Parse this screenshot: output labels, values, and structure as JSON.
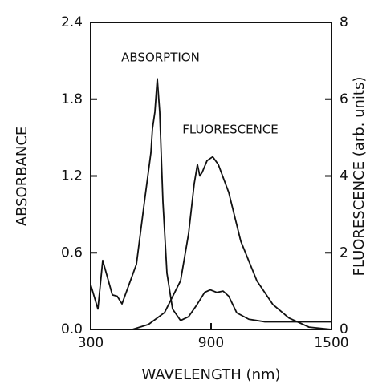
{
  "chart_data": {
    "type": "line",
    "annotations": [
      "ABSORPTION",
      "FLUORESCENCE"
    ],
    "xlabel": "WAVELENGTH (nm)",
    "ylabel": "ABSORBANCE",
    "y2label": "FLUORESCENCE (arb. units)",
    "xlim": [
      300,
      1500
    ],
    "xticks": [
      300,
      900,
      1500
    ],
    "ylim": [
      0,
      2.4
    ],
    "yticks": [
      {
        "value": 0,
        "label": "0.0"
      },
      0.6,
      1.2,
      1.8,
      2.4
    ],
    "y2lim": [
      0,
      8
    ],
    "y2ticks": [
      0,
      2,
      4,
      6,
      8
    ],
    "series": [
      {
        "name": "ABSORPTION",
        "color": "#111111",
        "x": [
          300,
          336,
          360,
          408,
          432,
          456,
          528,
          568,
          600,
          608,
          620,
          632,
          644,
          660,
          680,
          708,
          748,
          788,
          828,
          868,
          896,
          928,
          960,
          988,
          1028,
          1088,
          1168,
          1500
        ],
        "values": [
          0.35,
          0.16,
          0.54,
          0.27,
          0.26,
          0.2,
          0.51,
          1.0,
          1.38,
          1.57,
          1.7,
          1.96,
          1.7,
          1.0,
          0.44,
          0.16,
          0.07,
          0.1,
          0.19,
          0.29,
          0.31,
          0.29,
          0.3,
          0.26,
          0.13,
          0.08,
          0.06,
          0.06
        ]
      },
      {
        "name": "FLUORESCENCE",
        "color": "#111111",
        "axis": "y2",
        "x": [
          508,
          588,
          668,
          748,
          788,
          816,
          832,
          844,
          856,
          880,
          908,
          936,
          988,
          1048,
          1128,
          1208,
          1288,
          1388,
          1500
        ],
        "values": [
          0,
          0.13,
          0.44,
          1.27,
          2.5,
          3.8,
          4.3,
          4.0,
          4.1,
          4.4,
          4.5,
          4.3,
          3.57,
          2.3,
          1.27,
          0.65,
          0.3,
          0.06,
          0
        ]
      }
    ]
  }
}
